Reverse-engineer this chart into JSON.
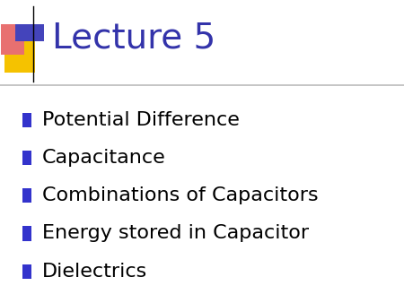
{
  "title": "Lecture 5",
  "title_color": "#3333AA",
  "title_fontsize": 28,
  "background_color": "#FFFFFF",
  "bullet_items": [
    "Potential Difference",
    "Capacitance",
    "Combinations of Capacitors",
    "Energy stored in Capacitor",
    "Dielectrics"
  ],
  "bullet_color": "#000000",
  "bullet_fontsize": 16,
  "bullet_marker_color": "#3333CC",
  "separator_color": "#BBBBBB",
  "logo_yellow_color": "#F5C200",
  "logo_red_color": "#E87070",
  "logo_blue_color": "#4444BB",
  "logo_line_color": "#000000"
}
